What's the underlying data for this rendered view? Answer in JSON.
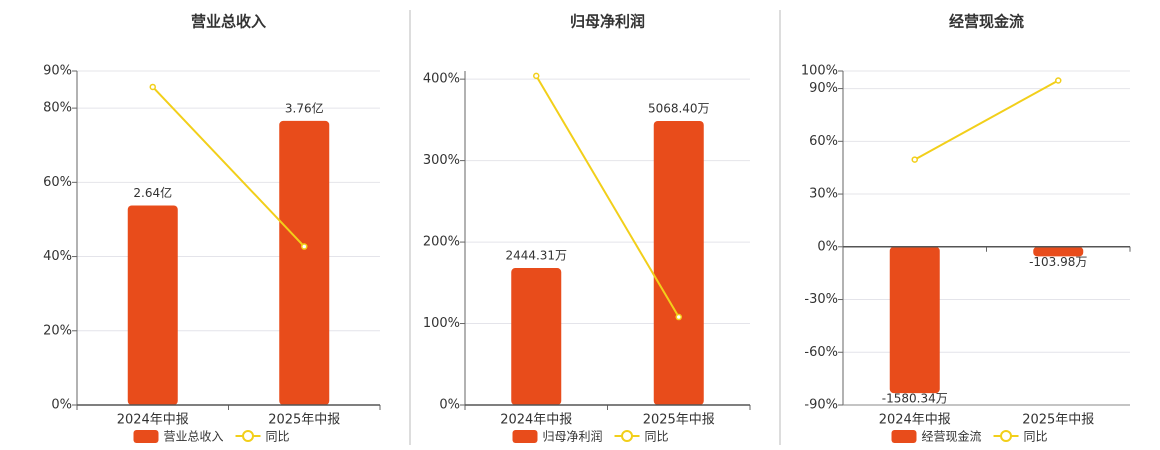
{
  "chart_data": [
    {
      "type": "bar_line",
      "title": "营业总收入",
      "categories": [
        "2024年中报",
        "2025年中报"
      ],
      "series": [
        {
          "name": "营业总收入",
          "color": "#e84c1b",
          "axis": "y2",
          "values": [
            2.64,
            3.76
          ],
          "value_labels": [
            "2.64亿",
            "3.76亿"
          ]
        },
        {
          "name": "同比",
          "color": "#f2cf1a",
          "axis": "y",
          "values": [
            85.7,
            42.7
          ]
        }
      ],
      "ylim": [
        0,
        90
      ],
      "yticks": [
        {
          "value": 0,
          "label": "0%"
        },
        {
          "value": 20,
          "label": "20%"
        },
        {
          "value": 40,
          "label": "40%"
        },
        {
          "value": 60,
          "label": "60%"
        },
        {
          "value": 80,
          "label": "80%"
        },
        {
          "value": 90,
          "label": "90%"
        }
      ],
      "y2lim": [
        0,
        4.42
      ],
      "grid": true
    },
    {
      "type": "bar_line",
      "title": "归母净利润",
      "categories": [
        "2024年中报",
        "2025年中报"
      ],
      "series": [
        {
          "name": "归母净利润",
          "color": "#e84c1b",
          "axis": "y2",
          "values": [
            2444.31,
            5068.4
          ],
          "value_labels": [
            "2444.31万",
            "5068.40万"
          ]
        },
        {
          "name": "同比",
          "color": "#f2cf1a",
          "axis": "y",
          "values": [
            404,
            108
          ]
        }
      ],
      "ylim": [
        0,
        410
      ],
      "yticks": [
        {
          "value": 0,
          "label": "0%"
        },
        {
          "value": 100,
          "label": "100%"
        },
        {
          "value": 200,
          "label": "200%"
        },
        {
          "value": 300,
          "label": "300%"
        },
        {
          "value": 400,
          "label": "400%"
        }
      ],
      "y2lim": [
        0,
        5960
      ],
      "grid": true
    },
    {
      "type": "bar_line",
      "title": "经营现金流",
      "categories": [
        "2024年中报",
        "2025年中报"
      ],
      "series": [
        {
          "name": "经营现金流",
          "color": "#e84c1b",
          "axis": "y2",
          "values": [
            -1580.34,
            -103.98
          ],
          "value_labels": [
            "-1580.34万",
            "-103.98万"
          ]
        },
        {
          "name": "同比",
          "color": "#f2cf1a",
          "axis": "y",
          "values": [
            49.6,
            94.6
          ]
        }
      ],
      "ylim": [
        -90,
        100
      ],
      "yticks": [
        {
          "value": -90,
          "label": "-90%"
        },
        {
          "value": -60,
          "label": "-60%"
        },
        {
          "value": -30,
          "label": "-30%"
        },
        {
          "value": 0,
          "label": "0%"
        },
        {
          "value": 30,
          "label": "30%"
        },
        {
          "value": 60,
          "label": "60%"
        },
        {
          "value": 90,
          "label": "90%"
        },
        {
          "value": 100,
          "label": "100%"
        }
      ],
      "y2lim": [
        -1708,
        1898
      ],
      "grid": true
    }
  ]
}
